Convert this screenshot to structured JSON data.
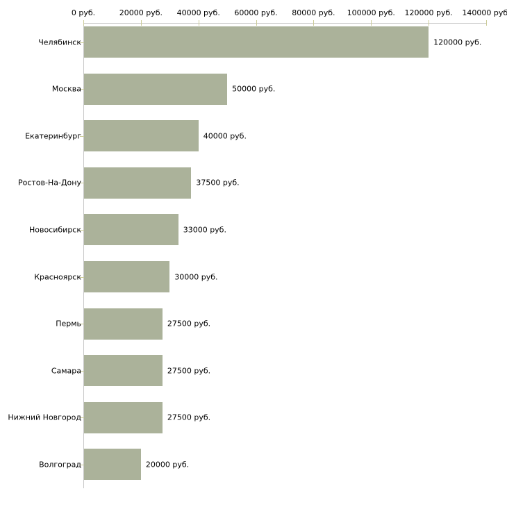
{
  "chart_data": {
    "type": "bar",
    "orientation": "horizontal",
    "title": "",
    "xlabel": "",
    "ylabel": "",
    "unit": "руб.",
    "categories": [
      "Челябинск",
      "Москва",
      "Екатеринбург",
      "Ростов-На-Дону",
      "Новосибирск",
      "Красноярск",
      "Пермь",
      "Самара",
      "Нижний Новгород",
      "Волгоград"
    ],
    "values": [
      120000,
      50000,
      40000,
      37500,
      33000,
      30000,
      27500,
      27500,
      27500,
      20000
    ],
    "value_labels": [
      "120000 руб.",
      "50000 руб.",
      "40000 руб.",
      "37500 руб.",
      "33000 руб.",
      "30000 руб.",
      "27500 руб.",
      "27500 руб.",
      "27500 руб.",
      "20000 руб."
    ],
    "x_ticks": [
      0,
      20000,
      40000,
      60000,
      80000,
      100000,
      120000,
      140000
    ],
    "x_tick_labels": [
      "0 руб.",
      "20000 руб.",
      "40000 руб.",
      "60000 руб.",
      "80000 руб.",
      "100000 руб.",
      "120000 руб.",
      "140000 руб."
    ],
    "xlim": [
      0,
      140000
    ],
    "grid": false,
    "legend": "none",
    "colors": {
      "bar": "#abb29a",
      "axis": "#c6c6c6",
      "tick": "#cccc99",
      "text": "#000000",
      "background": "#ffffff"
    }
  }
}
